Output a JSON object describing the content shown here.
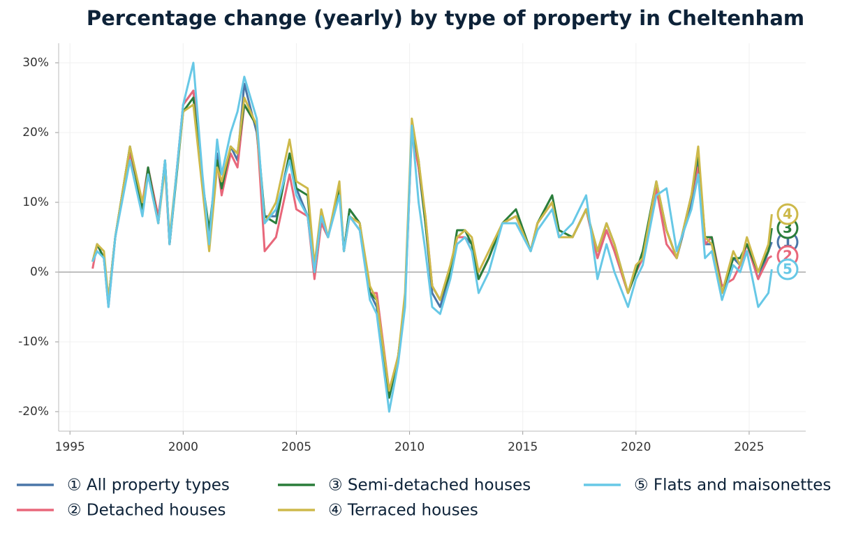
{
  "chart_data": {
    "type": "line",
    "title": "Percentage change (yearly) by type of property in Cheltenham",
    "x": [
      1996.0,
      1996.2,
      1996.5,
      1996.7,
      1997.0,
      1997.65,
      1998.2,
      1998.45,
      1998.9,
      1999.2,
      1999.4,
      2000.0,
      2000.45,
      2000.85,
      2001.15,
      2001.5,
      2001.7,
      2002.1,
      2002.4,
      2002.7,
      2003.25,
      2003.6,
      2004.1,
      2004.7,
      2005.0,
      2005.5,
      2005.8,
      2006.1,
      2006.4,
      2006.9,
      2007.1,
      2007.35,
      2007.8,
      2008.25,
      2008.55,
      2009.1,
      2009.5,
      2009.8,
      2010.1,
      2010.4,
      2010.7,
      2011.0,
      2011.35,
      2011.8,
      2012.1,
      2012.45,
      2012.75,
      2013.05,
      2013.5,
      2014.1,
      2014.7,
      2015.35,
      2015.65,
      2016.3,
      2016.6,
      2017.2,
      2017.8,
      2018.3,
      2018.7,
      2019.05,
      2019.65,
      2020.0,
      2020.3,
      2020.9,
      2021.35,
      2021.8,
      2022.45,
      2022.75,
      2023.05,
      2023.35,
      2023.8,
      2024.3,
      2024.6,
      2024.9,
      2025.4,
      2025.85,
      2026.0
    ],
    "series": [
      {
        "name": "① All property types",
        "marker": "1",
        "color": "#4a76a8",
        "values": [
          1.5,
          4,
          2,
          -5,
          5,
          18,
          9,
          15,
          7,
          16,
          4,
          24,
          26,
          13,
          5,
          17,
          12,
          18,
          16,
          27,
          20,
          8,
          8,
          17,
          12,
          8,
          0,
          8,
          5,
          12,
          3,
          9,
          7,
          -3,
          -5,
          -18,
          -12,
          -4,
          21,
          15,
          7,
          -3,
          -5,
          0,
          5,
          5,
          4,
          -1,
          2,
          7,
          8,
          3,
          7,
          10,
          5,
          5,
          9,
          2,
          6,
          3,
          -3,
          0,
          2,
          12,
          6,
          2,
          10,
          16,
          4,
          4,
          -3,
          2,
          1,
          4,
          -1,
          3,
          4.3
        ]
      },
      {
        "name": "② Detached houses",
        "marker": "2",
        "color": "#e8677a",
        "values": [
          0.5,
          4,
          2,
          -4,
          5,
          17,
          10,
          15,
          8,
          15,
          4,
          24,
          26,
          13,
          5,
          16,
          11,
          17,
          15,
          24,
          21,
          3,
          5,
          14,
          9,
          8,
          -1,
          7,
          5,
          12,
          3,
          8,
          6,
          -3,
          -3,
          -17,
          -12,
          -4,
          20,
          15,
          8,
          -2,
          -4,
          0,
          5,
          5,
          3,
          -1,
          2,
          7,
          8,
          3,
          7,
          10,
          5,
          5,
          9,
          2,
          6,
          3,
          -3,
          0,
          2,
          12,
          4,
          2,
          11,
          15,
          4,
          5,
          -2,
          -1,
          1,
          4,
          -1,
          2,
          2.3
        ]
      },
      {
        "name": "③ Semi-detached houses",
        "marker": "3",
        "color": "#2a7d3a",
        "values": [
          1.5,
          4,
          2,
          -4,
          5,
          18,
          9,
          15,
          7,
          16,
          4,
          23,
          25,
          13,
          6,
          16,
          12,
          18,
          17,
          24,
          21,
          8,
          7,
          17,
          12,
          11,
          0,
          8,
          5,
          12,
          3,
          9,
          7,
          -3,
          -4,
          -18,
          -12,
          -4,
          21,
          16,
          7,
          -2,
          -4,
          0,
          6,
          6,
          4,
          -1,
          2,
          7,
          9,
          3,
          7,
          11,
          6,
          5,
          9,
          3,
          7,
          4,
          -3,
          0,
          3,
          13,
          6,
          2,
          11,
          17,
          5,
          5,
          -3,
          2,
          2,
          4,
          0,
          3,
          6.3
        ]
      },
      {
        "name": "④ Terraced houses",
        "marker": "4",
        "color": "#cdb94a",
        "values": [
          1.5,
          4,
          3,
          -4,
          5,
          18,
          10,
          14,
          7,
          15,
          5,
          23,
          24,
          12,
          3,
          15,
          13,
          18,
          17,
          25,
          21,
          7,
          10,
          19,
          13,
          12,
          1,
          9,
          5,
          13,
          3,
          8,
          7,
          -2,
          -4,
          -17,
          -12,
          -3,
          22,
          16,
          8,
          -2,
          -4,
          1,
          5,
          6,
          5,
          0,
          3,
          7,
          8,
          3,
          7,
          10,
          5,
          5,
          9,
          3,
          7,
          4,
          -3,
          1,
          2,
          13,
          6,
          2,
          11,
          18,
          5,
          4,
          -3,
          3,
          1,
          5,
          0,
          4,
          8.3
        ]
      },
      {
        "name": "⑤ Flats and maisonettes",
        "marker": "5",
        "color": "#67c8e6",
        "values": [
          1.5,
          3,
          2,
          -5,
          5,
          16,
          8,
          14,
          7,
          16,
          4,
          24,
          30,
          14,
          4,
          19,
          14,
          20,
          23,
          28,
          22,
          7,
          9,
          16,
          11,
          8,
          0,
          8,
          5,
          11,
          3,
          8,
          6,
          -4,
          -6,
          -20,
          -13,
          -5,
          21,
          10,
          3,
          -5,
          -6,
          -1,
          4,
          5,
          3,
          -3,
          0,
          7,
          7,
          3,
          6,
          9,
          5,
          7,
          11,
          -1,
          4,
          0,
          -5,
          -1,
          1,
          11,
          12,
          3,
          9,
          14,
          2,
          3,
          -4,
          1,
          0,
          3,
          -5,
          -3,
          0.4
        ]
      }
    ],
    "xlim": [
      1994.5,
      2027.5
    ],
    "xticks": [
      1995,
      2000,
      2005,
      2010,
      2015,
      2020,
      2025
    ],
    "ylim": [
      -22.8,
      32.8
    ],
    "yticks": [
      {
        "value": -20,
        "label": "-20%"
      },
      {
        "value": -10,
        "label": "-10%"
      },
      {
        "value": 0,
        "label": "0%"
      },
      {
        "value": 10,
        "label": "10%"
      },
      {
        "value": 20,
        "label": "20%"
      },
      {
        "value": 30,
        "label": "30%"
      }
    ],
    "grid": true
  }
}
